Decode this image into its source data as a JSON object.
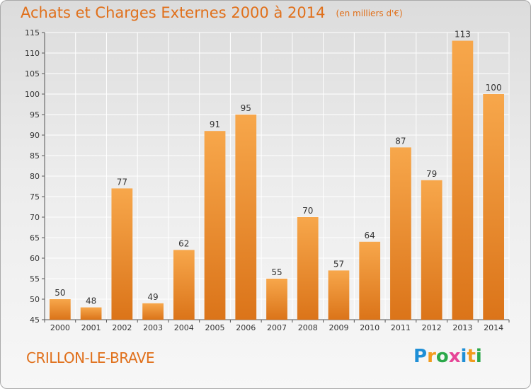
{
  "header": {
    "title": "Achats et Charges Externes 2000 à 2014",
    "unit": "(en milliers d'€)"
  },
  "footer": {
    "place": "CRILLON-LE-BRAVE",
    "logo_letters": [
      "P",
      "r",
      "o",
      "x",
      "i",
      "t",
      "i"
    ],
    "logo_colors": [
      "#1f8fd6",
      "#f29b1d",
      "#2ba84a",
      "#e64597",
      "#1f8fd6",
      "#f29b1d",
      "#2ba84a"
    ]
  },
  "colors": {
    "title": "#e0701b",
    "bar_light": "#f7a74b",
    "bar_dark": "#db7419",
    "grid": "#ffffff"
  },
  "chart_data": {
    "type": "bar",
    "title": "Achats et Charges Externes 2000 à 2014",
    "subtitle": "(en milliers d'€)",
    "xlabel": "",
    "ylabel": "",
    "categories": [
      "2000",
      "2001",
      "2002",
      "2003",
      "2004",
      "2005",
      "2006",
      "2007",
      "2008",
      "2009",
      "2010",
      "2011",
      "2012",
      "2013",
      "2014"
    ],
    "values": [
      50,
      48,
      77,
      49,
      62,
      91,
      95,
      55,
      70,
      57,
      64,
      87,
      79,
      113,
      100
    ],
    "ylim": [
      45,
      115
    ],
    "yticks": [
      45,
      50,
      55,
      60,
      65,
      70,
      75,
      80,
      85,
      90,
      95,
      100,
      105,
      110,
      115
    ],
    "grid": true,
    "data_labels": true
  }
}
